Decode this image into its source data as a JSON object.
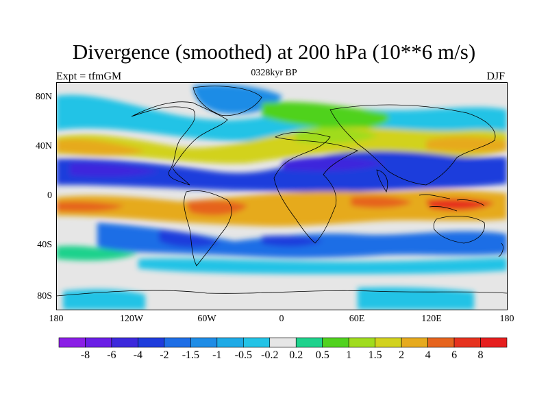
{
  "header": {
    "title": "Divergence (smoothed) at 200 hPa (10**6 m/s)",
    "left": "Expt = tfmGM",
    "center": "0328kyr BP",
    "right": "DJF"
  },
  "axes": {
    "lat_ticks": [
      "80N",
      "40N",
      "0",
      "40S",
      "80S"
    ],
    "lon_ticks": [
      "180",
      "120W",
      "60W",
      "0",
      "60E",
      "120E",
      "180"
    ]
  },
  "colorbar": {
    "labels": [
      "-8",
      "-6",
      "-4",
      "-2",
      "-1.5",
      "-1",
      "-0.5",
      "-0.2",
      "0.2",
      "0.5",
      "1",
      "1.5",
      "2",
      "4",
      "6",
      "8"
    ],
    "colors": [
      "#8a1ee6",
      "#6a1ee6",
      "#3c28dc",
      "#1e3cdc",
      "#1e6ee6",
      "#1e8ce6",
      "#1eaae6",
      "#23c3e6",
      "#e6e6e6",
      "#1ed28c",
      "#50d21e",
      "#a0dc1e",
      "#d2d21e",
      "#e6aa1e",
      "#e6641e",
      "#e6321e",
      "#e61e1e"
    ]
  }
}
